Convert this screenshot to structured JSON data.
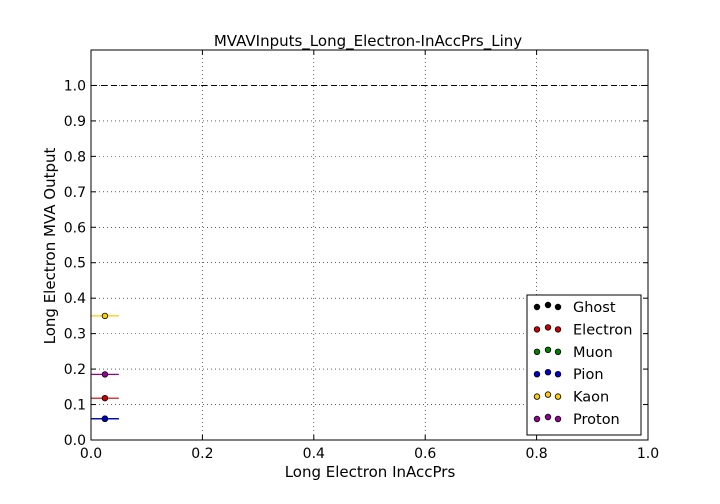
{
  "chart_data": {
    "type": "scatter",
    "title": "MVAVInputs_Long_Electron-InAccPrs_Liny",
    "xlabel": "Long Electron InAccPrs",
    "ylabel": "Long Electron MVA Output",
    "xlim": [
      0.0,
      1.0
    ],
    "ylim": [
      0.0,
      1.1
    ],
    "x_ticks": [
      "0.0",
      "0.2",
      "0.4",
      "0.6",
      "0.8",
      "1.0"
    ],
    "y_ticks": [
      "0.0",
      "0.1",
      "0.2",
      "0.3",
      "0.4",
      "0.5",
      "0.6",
      "0.7",
      "0.8",
      "0.9",
      "1.0"
    ],
    "grid": true,
    "reference_line": {
      "y": 1.0,
      "style": "dashed"
    },
    "legend_position": "lower-right",
    "series": [
      {
        "name": "Ghost",
        "color": "#000000",
        "x": [
          0.025
        ],
        "y": [
          0.06
        ],
        "xerr": [
          0.025
        ]
      },
      {
        "name": "Electron",
        "color": "#cc0000",
        "x": [
          0.025
        ],
        "y": [
          0.118
        ],
        "xerr": [
          0.025
        ]
      },
      {
        "name": "Muon",
        "color": "#008000",
        "x": [
          0.025
        ],
        "y": [
          0.06
        ],
        "xerr": [
          0.025
        ]
      },
      {
        "name": "Pion",
        "color": "#0000cc",
        "x": [
          0.025
        ],
        "y": [
          0.06
        ],
        "xerr": [
          0.025
        ]
      },
      {
        "name": "Kaon",
        "color": "#ffcc00",
        "x": [
          0.025
        ],
        "y": [
          0.35
        ],
        "xerr": [
          0.025
        ]
      },
      {
        "name": "Proton",
        "color": "#990099",
        "x": [
          0.025
        ],
        "y": [
          0.185
        ],
        "xerr": [
          0.025
        ]
      }
    ]
  }
}
